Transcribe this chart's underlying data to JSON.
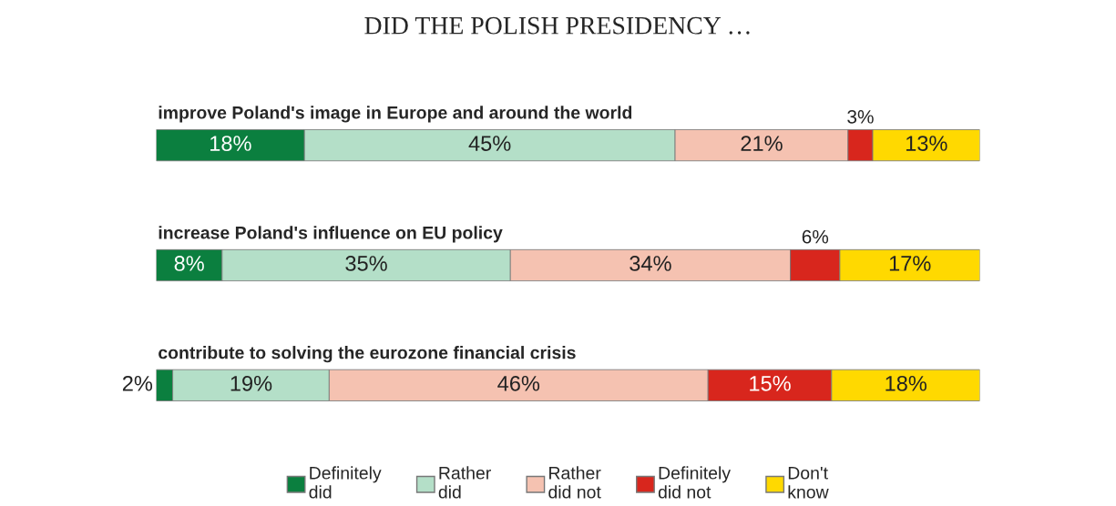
{
  "chart_data": {
    "type": "bar",
    "orientation": "horizontal",
    "stacked": true,
    "title": "DID THE POLISH PRESIDENCY …",
    "categories": [
      "improve Poland's image in Europe and around the world",
      "increase Poland's influence on EU policy",
      "contribute to solving the eurozone financial crisis"
    ],
    "series": [
      {
        "name": "Definitely\ndid",
        "color": "#0b7f3f",
        "values": [
          18,
          8,
          2
        ],
        "value_labels": [
          "18%",
          "8%",
          "2%"
        ]
      },
      {
        "name": "Rather\ndid",
        "color": "#b4dfc8",
        "values": [
          45,
          35,
          19
        ],
        "value_labels": [
          "45%",
          "35%",
          "19%"
        ]
      },
      {
        "name": "Rather\ndid not",
        "color": "#f5c2b1",
        "values": [
          21,
          34,
          46
        ],
        "value_labels": [
          "21%",
          "34%",
          "46%"
        ]
      },
      {
        "name": "Definitely\ndid not",
        "color": "#d8261d",
        "values": [
          3,
          6,
          15
        ],
        "value_labels": [
          "3%",
          "6%",
          "15%"
        ]
      },
      {
        "name": "Don't\nknow",
        "color": "#ffd900",
        "values": [
          13,
          17,
          18
        ],
        "value_labels": [
          "13%",
          "17%",
          "18%"
        ]
      }
    ],
    "legend": "bottom"
  }
}
